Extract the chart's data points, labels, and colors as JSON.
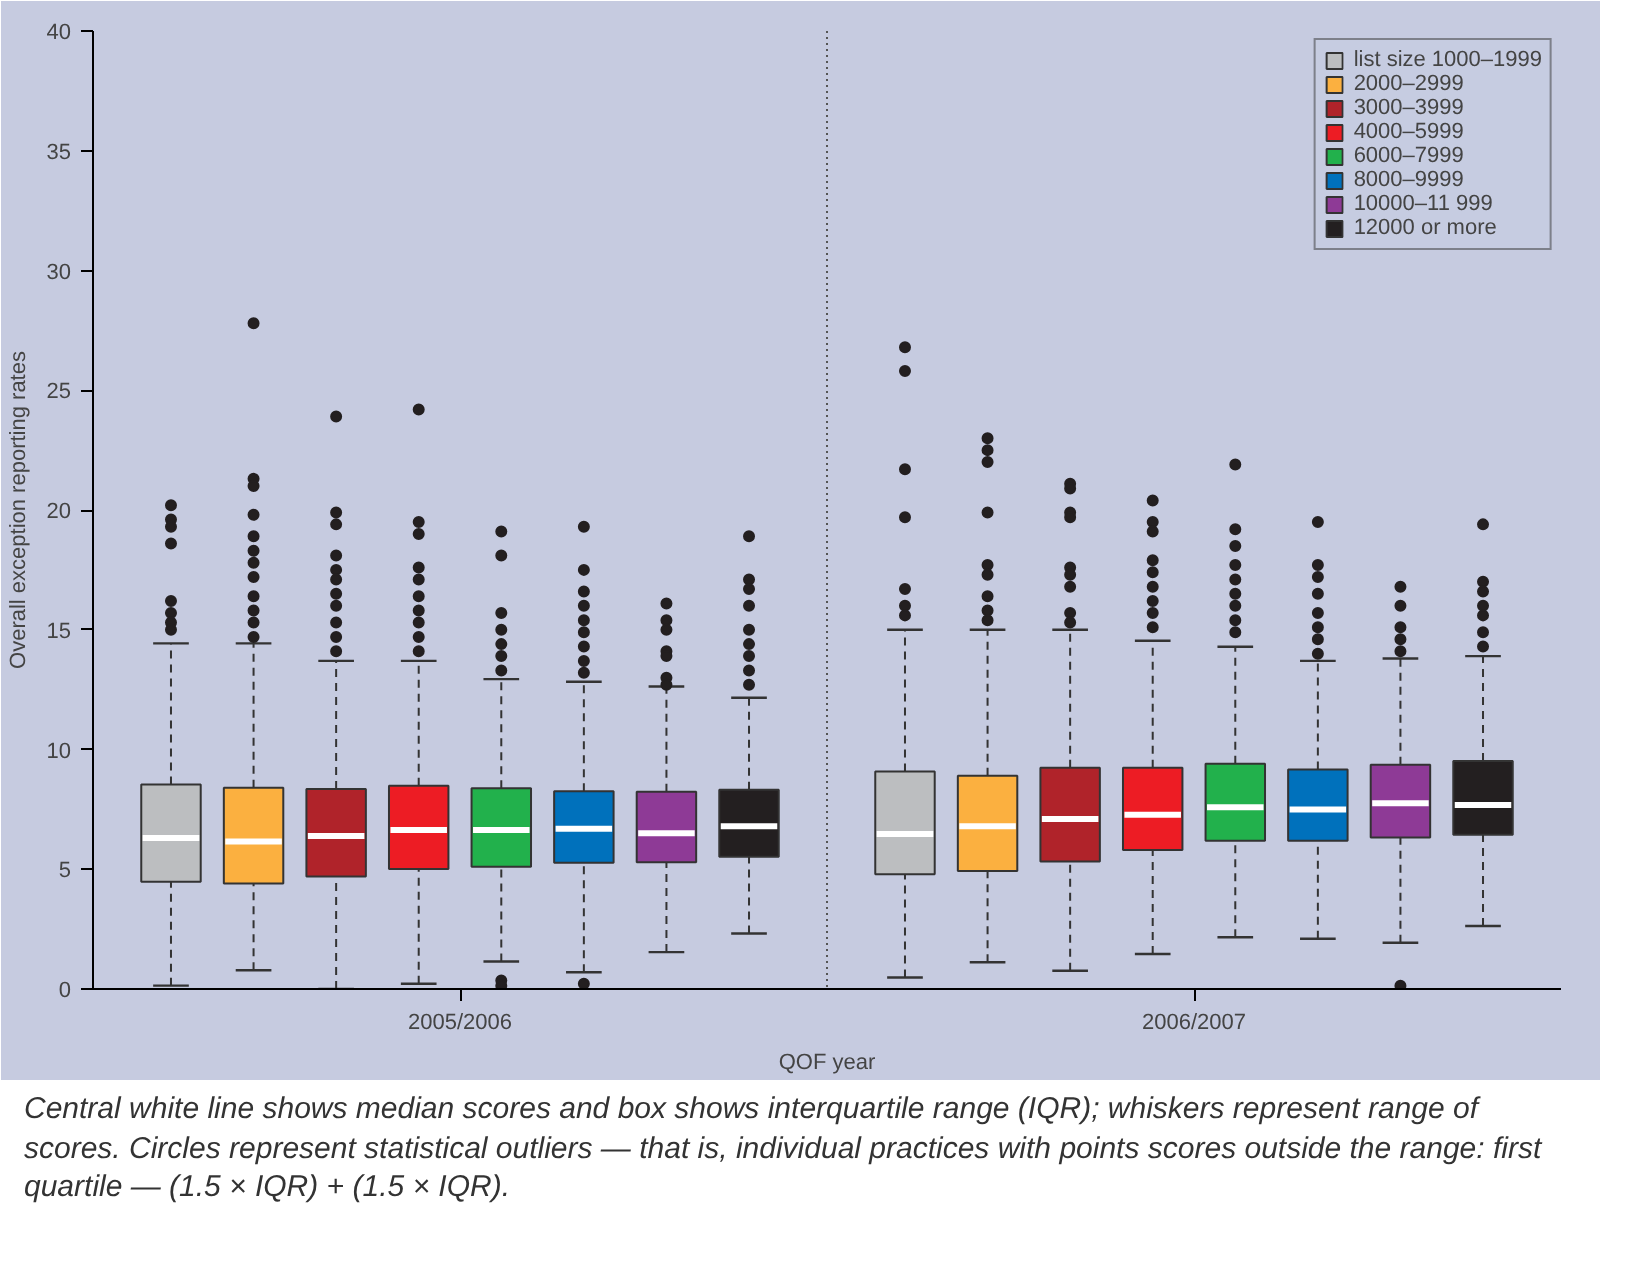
{
  "chart_data": {
    "type": "box",
    "xlabel": "QOF year",
    "ylabel": "Overall exception reporting rates",
    "categories": [
      "2005/2006",
      "2006/2007"
    ],
    "ylim": [
      0,
      40
    ],
    "yticks": [
      0,
      5,
      10,
      15,
      20,
      25,
      30,
      35,
      40
    ],
    "grid": false,
    "legend": "top right",
    "series": [
      {
        "name": "list size 1000–1999",
        "color": "#bcbec0",
        "boxes": [
          {
            "low": 0.14,
            "q1": 4.48,
            "median": 6.3,
            "q3": 8.54,
            "high": 14.43,
            "outliers": [
              20.2,
              19.6,
              19.3,
              18.6,
              16.2,
              15.7,
              15.3,
              15.0
            ]
          },
          {
            "low": 0.48,
            "q1": 4.79,
            "median": 6.47,
            "q3": 9.08,
            "high": 15.0,
            "outliers": [
              26.8,
              25.8,
              21.7,
              19.7,
              16.7,
              16.0,
              15.6
            ]
          }
        ]
      },
      {
        "name": "2000–2999",
        "color": "#fbb040",
        "boxes": [
          {
            "low": 0.78,
            "q1": 4.4,
            "median": 6.16,
            "q3": 8.4,
            "high": 14.43,
            "outliers": [
              27.8,
              21.3,
              21.0,
              19.8,
              18.9,
              18.3,
              17.8,
              17.2,
              16.4,
              15.8,
              15.3,
              14.7
            ]
          },
          {
            "low": 1.12,
            "q1": 4.93,
            "median": 6.8,
            "q3": 8.9,
            "high": 15.0,
            "outliers": [
              23.0,
              22.5,
              22.0,
              19.9,
              17.7,
              17.3,
              16.4,
              15.8,
              15.4
            ]
          }
        ]
      },
      {
        "name": "3000–3999",
        "color": "#b0232a",
        "boxes": [
          {
            "low": 0.0,
            "q1": 4.7,
            "median": 6.39,
            "q3": 8.35,
            "high": 13.7,
            "outliers": [
              23.9,
              19.9,
              19.4,
              18.1,
              17.5,
              17.1,
              16.5,
              16.0,
              15.3,
              14.7,
              14.1
            ]
          },
          {
            "low": 0.76,
            "q1": 5.32,
            "median": 7.1,
            "q3": 9.24,
            "high": 15.0,
            "outliers": [
              21.1,
              20.9,
              19.9,
              19.7,
              17.6,
              17.3,
              16.8,
              15.7,
              15.3
            ]
          }
        ]
      },
      {
        "name": "4000–5999",
        "color": "#ed1c24",
        "boxes": [
          {
            "low": 0.22,
            "q1": 5.01,
            "median": 6.64,
            "q3": 8.49,
            "high": 13.7,
            "outliers": [
              24.2,
              19.5,
              19.0,
              17.6,
              17.1,
              16.4,
              15.8,
              15.3,
              14.7,
              14.1
            ]
          },
          {
            "low": 1.46,
            "q1": 5.8,
            "median": 7.28,
            "q3": 9.24,
            "high": 14.54,
            "outliers": [
              20.4,
              19.5,
              19.1,
              17.9,
              17.4,
              16.8,
              16.2,
              15.7,
              15.1
            ]
          }
        ]
      },
      {
        "name": "6000–7999",
        "color": "#22b14c",
        "boxes": [
          {
            "low": 1.15,
            "q1": 5.1,
            "median": 6.64,
            "q3": 8.38,
            "high": 12.94,
            "outliers": [
              19.1,
              18.1,
              15.7,
              15.0,
              14.4,
              13.9,
              13.3,
              0.36,
              0.14
            ]
          },
          {
            "low": 2.16,
            "q1": 6.19,
            "median": 7.59,
            "q3": 9.41,
            "high": 14.29,
            "outliers": [
              21.9,
              19.2,
              18.5,
              17.7,
              17.1,
              16.5,
              16.0,
              15.4,
              14.9
            ]
          }
        ]
      },
      {
        "name": "8000–9999",
        "color": "#0071bc",
        "boxes": [
          {
            "low": 0.7,
            "q1": 5.27,
            "median": 6.69,
            "q3": 8.26,
            "high": 12.83,
            "outliers": [
              19.3,
              17.5,
              16.6,
              16.0,
              15.4,
              14.9,
              14.3,
              13.7,
              13.2,
              0.22
            ]
          },
          {
            "low": 2.1,
            "q1": 6.19,
            "median": 7.5,
            "q3": 9.16,
            "high": 13.7,
            "outliers": [
              19.5,
              17.7,
              17.2,
              16.5,
              15.7,
              15.1,
              14.6,
              14.0
            ]
          }
        ]
      },
      {
        "name": "10000–11 999",
        "color": "#8e3a96",
        "boxes": [
          {
            "low": 1.54,
            "q1": 5.29,
            "median": 6.5,
            "q3": 8.24,
            "high": 12.63,
            "outliers": [
              16.1,
              15.4,
              15.0,
              14.1,
              13.9,
              13.0,
              12.7
            ]
          },
          {
            "low": 1.93,
            "q1": 6.33,
            "median": 7.76,
            "q3": 9.36,
            "high": 13.8,
            "outliers": [
              16.8,
              16.0,
              15.1,
              14.6,
              14.1,
              0.14
            ]
          }
        ]
      },
      {
        "name": "12000 or more",
        "color": "#231f20",
        "boxes": [
          {
            "low": 2.32,
            "q1": 5.52,
            "median": 6.8,
            "q3": 8.32,
            "high": 12.16,
            "outliers": [
              18.9,
              17.1,
              16.7,
              16.0,
              15.0,
              14.4,
              13.9,
              13.3,
              12.7
            ]
          },
          {
            "low": 2.63,
            "q1": 6.44,
            "median": 7.68,
            "q3": 9.52,
            "high": 13.9,
            "outliers": [
              19.4,
              17.0,
              16.6,
              16.0,
              15.6,
              14.9,
              14.3
            ]
          }
        ]
      }
    ],
    "annotations": [
      "Central white line shows median scores and box shows interquartile range (IQR); whiskers represent range of scores. Circles represent statistical outliers — that is, individual practices with points scores outside the range: first quartile — (1.5 × IQR) + (1.5 × IQR)."
    ]
  }
}
